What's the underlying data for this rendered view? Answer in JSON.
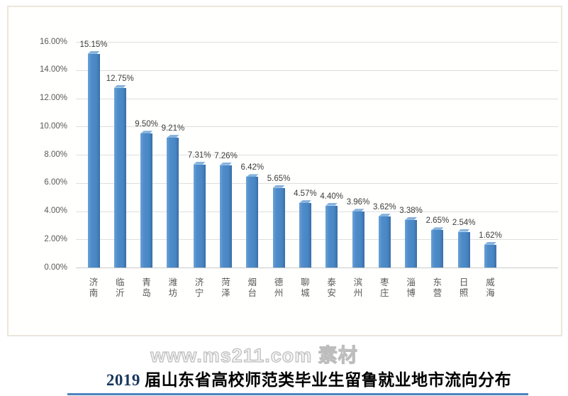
{
  "watermark": {
    "text": "www.ms211.com 素材"
  },
  "caption": {
    "year": "2019",
    "text": " 届山东省高校师范类毕业生留鲁就业地市流向分布",
    "full": "2019 届山东省高校师范类毕业生留鲁就业地市流向分布"
  },
  "colors": {
    "bar_face": "#4f8cc9",
    "bar_top": "#86b3dd",
    "bar_side": "#3a6ea6",
    "gridline": "#dedede",
    "axis_text": "#595959",
    "value_label_text": "#3c3c3c",
    "panel_border": "#ebe6da",
    "caption_year": "#17365d",
    "watermark_gray": "#bdbdbd",
    "bottom_rule_blue": "#4f81bd"
  },
  "chart_data": {
    "type": "bar",
    "title": "2019届山东省高校师范类毕业生留鲁就业地市流向分布",
    "categories": [
      "济南",
      "临沂",
      "青岛",
      "潍坊",
      "济宁",
      "菏泽",
      "烟台",
      "德州",
      "聊城",
      "泰安",
      "滨州",
      "枣庄",
      "淄博",
      "东营",
      "日照",
      "威海"
    ],
    "values": [
      15.15,
      12.75,
      9.5,
      9.21,
      7.31,
      7.26,
      6.42,
      5.65,
      4.57,
      4.4,
      3.96,
      3.62,
      3.38,
      2.65,
      2.54,
      1.62
    ],
    "value_labels": [
      "15.15%",
      "12.75%",
      "9.50%",
      "9.21%",
      "7.31%",
      "7.26%",
      "6.42%",
      "5.65%",
      "4.57%",
      "4.40%",
      "3.96%",
      "3.62%",
      "3.38%",
      "2.65%",
      "2.54%",
      "1.62%"
    ],
    "xlabel": "",
    "ylabel": "",
    "ylim": [
      0,
      16
    ],
    "ytick_step": 2,
    "ytick_labels": [
      "16.00%",
      "14.00%",
      "12.00%",
      "10.00%",
      "8.00%",
      "6.00%",
      "4.00%",
      "2.00%",
      "0.00%"
    ],
    "grid": true,
    "legend": false,
    "bar_color": "#4f8cc9"
  }
}
